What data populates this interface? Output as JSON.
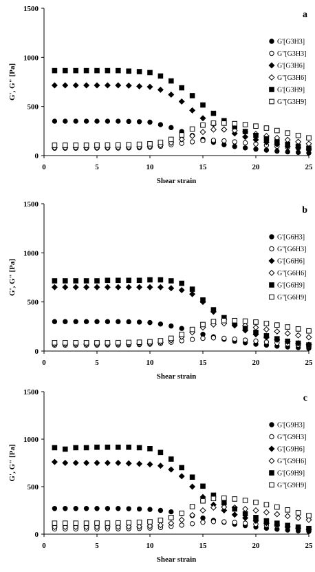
{
  "chart_data": [
    {
      "type": "scatter",
      "panel": "a",
      "xlabel": "Shear strain",
      "ylabel": "G', G\" [Pa]",
      "xlim": [
        0,
        25
      ],
      "ylim": [
        0,
        1500
      ],
      "xticks": [
        0,
        5,
        10,
        15,
        20,
        25
      ],
      "yticks": [
        0,
        500,
        1000,
        1500
      ],
      "legend_position": "right",
      "x": [
        1,
        2,
        3,
        4,
        5,
        6,
        7,
        8,
        9,
        10,
        11,
        12,
        13,
        14,
        15,
        16,
        17,
        18,
        19,
        20,
        21,
        22,
        23,
        24,
        25
      ],
      "series": [
        {
          "name": "G'[G3H3]",
          "marker": "circle-filled",
          "values": [
            350,
            350,
            350,
            350,
            350,
            350,
            350,
            348,
            345,
            340,
            315,
            285,
            245,
            205,
            165,
            135,
            110,
            92,
            78,
            65,
            55,
            45,
            38,
            32,
            26
          ]
        },
        {
          "name": "G\"[G3H3]",
          "marker": "circle-open",
          "values": [
            75,
            75,
            75,
            75,
            76,
            76,
            76,
            78,
            80,
            85,
            95,
            110,
            125,
            140,
            152,
            155,
            150,
            140,
            130,
            118,
            105,
            95,
            85,
            75,
            65
          ]
        },
        {
          "name": "G'[G3H6]",
          "marker": "diamond-filled",
          "values": [
            715,
            715,
            715,
            715,
            715,
            715,
            715,
            712,
            705,
            700,
            670,
            620,
            550,
            460,
            380,
            320,
            265,
            225,
            190,
            160,
            135,
            115,
            95,
            80,
            65
          ]
        },
        {
          "name": "G\"[G3H6]",
          "marker": "diamond-open",
          "values": [
            80,
            80,
            80,
            80,
            80,
            82,
            82,
            85,
            88,
            92,
            105,
            130,
            165,
            200,
            240,
            265,
            265,
            255,
            240,
            220,
            200,
            180,
            160,
            140,
            120
          ]
        },
        {
          "name": "G'[G3H9]",
          "marker": "square-filled",
          "values": [
            865,
            865,
            865,
            865,
            865,
            865,
            865,
            860,
            855,
            845,
            810,
            760,
            690,
            610,
            515,
            430,
            355,
            295,
            245,
            205,
            170,
            140,
            115,
            95,
            75
          ]
        },
        {
          "name": "G\"[G3H9]",
          "marker": "square-open",
          "values": [
            105,
            105,
            105,
            105,
            106,
            106,
            108,
            110,
            115,
            120,
            135,
            165,
            210,
            270,
            310,
            330,
            330,
            325,
            315,
            300,
            280,
            255,
            230,
            205,
            180
          ]
        }
      ]
    },
    {
      "type": "scatter",
      "panel": "b",
      "xlabel": "Shear strain",
      "ylabel": "G', G\" [Pa]",
      "xlim": [
        0,
        25
      ],
      "ylim": [
        0,
        1500
      ],
      "xticks": [
        0,
        5,
        10,
        15,
        20,
        25
      ],
      "yticks": [
        0,
        500,
        1000,
        1500
      ],
      "legend_position": "right",
      "x": [
        1,
        2,
        3,
        4,
        5,
        6,
        7,
        8,
        9,
        10,
        11,
        12,
        13,
        14,
        15,
        16,
        17,
        18,
        19,
        20,
        21,
        22,
        23,
        24,
        25
      ],
      "series": [
        {
          "name": "G'[G6H3]",
          "marker": "circle-filled",
          "values": [
            300,
            300,
            300,
            300,
            300,
            300,
            300,
            298,
            295,
            290,
            275,
            255,
            230,
            200,
            170,
            145,
            120,
            100,
            85,
            70,
            60,
            50,
            42,
            35,
            28
          ]
        },
        {
          "name": "G\"[G6H3]",
          "marker": "circle-open",
          "values": [
            60,
            60,
            60,
            60,
            60,
            62,
            62,
            64,
            66,
            70,
            78,
            90,
            105,
            118,
            130,
            135,
            130,
            122,
            112,
            102,
            92,
            82,
            72,
            62,
            52
          ]
        },
        {
          "name": "G'[G6H6]",
          "marker": "diamond-filled",
          "values": [
            650,
            650,
            650,
            650,
            650,
            650,
            650,
            650,
            650,
            650,
            650,
            640,
            620,
            580,
            500,
            400,
            320,
            260,
            210,
            170,
            140,
            115,
            95,
            80,
            65
          ]
        },
        {
          "name": "G\"[G6H6]",
          "marker": "diamond-open",
          "values": [
            70,
            70,
            70,
            70,
            70,
            70,
            72,
            74,
            76,
            80,
            90,
            110,
            145,
            190,
            240,
            270,
            280,
            275,
            260,
            240,
            220,
            200,
            180,
            160,
            140
          ]
        },
        {
          "name": "G'[G6H9]",
          "marker": "square-filled",
          "values": [
            715,
            715,
            715,
            715,
            715,
            720,
            720,
            720,
            720,
            725,
            725,
            715,
            690,
            630,
            520,
            420,
            340,
            280,
            230,
            190,
            155,
            125,
            100,
            80,
            62
          ]
        },
        {
          "name": "G\"[G6H9]",
          "marker": "square-open",
          "values": [
            85,
            85,
            85,
            85,
            85,
            85,
            86,
            88,
            90,
            95,
            105,
            130,
            170,
            220,
            270,
            300,
            310,
            310,
            305,
            295,
            280,
            265,
            245,
            225,
            205
          ]
        }
      ]
    },
    {
      "type": "scatter",
      "panel": "c",
      "xlabel": "Shear strain",
      "ylabel": "G', G\" [Pa]",
      "xlim": [
        0,
        25
      ],
      "ylim": [
        0,
        1500
      ],
      "xticks": [
        0,
        5,
        10,
        15,
        20,
        25
      ],
      "yticks": [
        0,
        500,
        1000,
        1500
      ],
      "legend_position": "right",
      "x": [
        1,
        2,
        3,
        4,
        5,
        6,
        7,
        8,
        9,
        10,
        11,
        12,
        13,
        14,
        15,
        16,
        17,
        18,
        19,
        20,
        21,
        22,
        23,
        24,
        25
      ],
      "series": [
        {
          "name": "G'[G9H3]",
          "marker": "circle-filled",
          "values": [
            270,
            270,
            270,
            270,
            270,
            270,
            270,
            268,
            265,
            260,
            250,
            235,
            215,
            195,
            170,
            145,
            125,
            105,
            90,
            75,
            62,
            52,
            43,
            35,
            28
          ]
        },
        {
          "name": "G\"[G9H3]",
          "marker": "circle-open",
          "values": [
            55,
            55,
            55,
            55,
            55,
            56,
            56,
            58,
            60,
            64,
            70,
            82,
            95,
            110,
            125,
            132,
            130,
            124,
            115,
            105,
            95,
            85,
            75,
            65,
            55
          ]
        },
        {
          "name": "G'[G9H6]",
          "marker": "diamond-filled",
          "values": [
            760,
            750,
            750,
            750,
            750,
            750,
            750,
            745,
            740,
            735,
            720,
            680,
            610,
            500,
            390,
            310,
            250,
            205,
            170,
            140,
            115,
            95,
            78,
            63,
            50
          ]
        },
        {
          "name": "G\"[G9H6]",
          "marker": "diamond-open",
          "values": [
            75,
            75,
            75,
            75,
            75,
            76,
            76,
            78,
            80,
            85,
            95,
            115,
            150,
            200,
            250,
            280,
            285,
            280,
            265,
            250,
            230,
            210,
            190,
            170,
            150
          ]
        },
        {
          "name": "G'[G9H9]",
          "marker": "square-filled",
          "values": [
            910,
            895,
            910,
            910,
            915,
            915,
            915,
            915,
            910,
            900,
            860,
            790,
            700,
            600,
            505,
            410,
            330,
            265,
            215,
            175,
            140,
            115,
            92,
            75,
            60
          ]
        },
        {
          "name": "G\"[G9H9]",
          "marker": "square-open",
          "values": [
            115,
            115,
            115,
            115,
            116,
            116,
            118,
            120,
            125,
            130,
            145,
            175,
            220,
            290,
            350,
            375,
            380,
            370,
            355,
            335,
            310,
            285,
            255,
            225,
            195
          ]
        }
      ]
    }
  ]
}
